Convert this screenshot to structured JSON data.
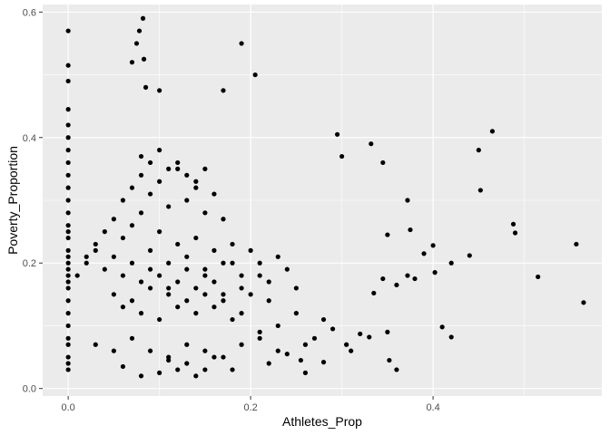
{
  "chart_data": {
    "type": "scatter",
    "title": "",
    "xlabel": "Athletes_Prop",
    "ylabel": "Poverty_Proportion",
    "xlim": [
      -0.028,
      0.585
    ],
    "ylim": [
      -0.012,
      0.612
    ],
    "x_ticks": [
      0.0,
      0.2,
      0.4
    ],
    "x_tick_labels": [
      "0.0",
      "0.2",
      "0.4"
    ],
    "y_ticks": [
      0.0,
      0.2,
      0.4,
      0.6
    ],
    "y_tick_labels": [
      "0.0",
      "0.2",
      "0.4",
      "0.6"
    ],
    "grid": true,
    "legend": "none",
    "colors": {
      "panel": "#ebebeb",
      "grid": "#ffffff",
      "point": "#000000"
    },
    "series": [
      {
        "x": [
          0.0,
          0.0,
          0.0,
          0.0,
          0.0,
          0.0,
          0.0,
          0.0,
          0.0,
          0.0,
          0.0,
          0.0,
          0.0,
          0.0,
          0.0,
          0.0,
          0.0,
          0.0,
          0.0,
          0.0,
          0.0,
          0.0,
          0.0,
          0.0,
          0.0,
          0.0,
          0.0,
          0.0,
          0.0,
          0.0,
          0.01,
          0.02,
          0.03,
          0.04,
          0.05,
          0.06,
          0.07,
          0.08,
          0.09,
          0.1,
          0.11,
          0.12,
          0.13,
          0.14,
          0.15,
          0.16,
          0.17,
          0.18,
          0.19,
          0.2,
          0.21,
          0.22,
          0.23,
          0.24,
          0.25,
          0.06,
          0.07,
          0.08,
          0.09,
          0.1,
          0.11,
          0.12,
          0.13,
          0.14,
          0.15,
          0.16,
          0.17,
          0.08,
          0.09,
          0.1,
          0.11,
          0.12,
          0.13,
          0.14,
          0.15,
          0.05,
          0.06,
          0.07,
          0.08,
          0.09,
          0.1,
          0.11,
          0.12,
          0.13,
          0.14,
          0.15,
          0.16,
          0.17,
          0.18,
          0.19,
          0.02,
          0.03,
          0.04,
          0.05,
          0.06,
          0.07,
          0.08,
          0.09,
          0.1,
          0.11,
          0.12,
          0.13,
          0.14,
          0.15,
          0.16,
          0.17,
          0.18,
          0.19,
          0.2,
          0.21,
          0.22,
          0.03,
          0.05,
          0.07,
          0.09,
          0.11,
          0.13,
          0.15,
          0.17,
          0.19,
          0.21,
          0.23,
          0.082,
          0.078,
          0.075,
          0.083,
          0.07,
          0.085,
          0.1,
          0.17,
          0.205,
          0.19,
          0.295,
          0.3,
          0.332,
          0.345,
          0.465,
          0.45,
          0.372,
          0.452,
          0.375,
          0.488,
          0.49,
          0.557,
          0.4,
          0.44,
          0.35,
          0.39,
          0.402,
          0.372,
          0.345,
          0.36,
          0.335,
          0.38,
          0.42,
          0.515,
          0.565,
          0.35,
          0.33,
          0.41,
          0.42,
          0.352,
          0.26,
          0.28,
          0.32,
          0.36,
          0.255,
          0.305,
          0.08,
          0.06,
          0.1,
          0.12,
          0.13,
          0.14,
          0.11,
          0.15,
          0.16,
          0.18,
          0.22,
          0.24,
          0.26,
          0.27,
          0.29,
          0.31,
          0.28,
          0.25,
          0.23,
          0.21
        ],
        "y": [
          0.57,
          0.515,
          0.49,
          0.445,
          0.42,
          0.4,
          0.38,
          0.36,
          0.34,
          0.32,
          0.3,
          0.28,
          0.26,
          0.25,
          0.24,
          0.22,
          0.21,
          0.2,
          0.19,
          0.18,
          0.17,
          0.16,
          0.14,
          0.12,
          0.1,
          0.08,
          0.07,
          0.05,
          0.04,
          0.03,
          0.18,
          0.21,
          0.23,
          0.25,
          0.27,
          0.24,
          0.26,
          0.28,
          0.22,
          0.25,
          0.2,
          0.23,
          0.21,
          0.24,
          0.19,
          0.22,
          0.2,
          0.23,
          0.18,
          0.22,
          0.2,
          0.17,
          0.21,
          0.19,
          0.16,
          0.3,
          0.32,
          0.34,
          0.31,
          0.33,
          0.29,
          0.35,
          0.3,
          0.32,
          0.28,
          0.31,
          0.27,
          0.37,
          0.36,
          0.38,
          0.35,
          0.36,
          0.34,
          0.33,
          0.35,
          0.15,
          0.13,
          0.14,
          0.12,
          0.16,
          0.11,
          0.15,
          0.13,
          0.14,
          0.12,
          0.15,
          0.13,
          0.14,
          0.11,
          0.12,
          0.2,
          0.22,
          0.19,
          0.21,
          0.18,
          0.2,
          0.17,
          0.19,
          0.18,
          0.16,
          0.17,
          0.19,
          0.16,
          0.18,
          0.17,
          0.15,
          0.2,
          0.16,
          0.15,
          0.18,
          0.14,
          0.07,
          0.06,
          0.08,
          0.06,
          0.05,
          0.07,
          0.06,
          0.05,
          0.07,
          0.08,
          0.06,
          0.59,
          0.57,
          0.55,
          0.525,
          0.52,
          0.48,
          0.475,
          0.475,
          0.5,
          0.55,
          0.405,
          0.37,
          0.39,
          0.36,
          0.41,
          0.38,
          0.3,
          0.316,
          0.253,
          0.262,
          0.248,
          0.23,
          0.228,
          0.212,
          0.245,
          0.215,
          0.185,
          0.18,
          0.175,
          0.165,
          0.152,
          0.175,
          0.2,
          0.178,
          0.137,
          0.09,
          0.082,
          0.098,
          0.082,
          0.045,
          0.025,
          0.042,
          0.087,
          0.03,
          0.045,
          0.07,
          0.02,
          0.035,
          0.025,
          0.03,
          0.04,
          0.02,
          0.045,
          0.03,
          0.05,
          0.03,
          0.04,
          0.055,
          0.07,
          0.08,
          0.095,
          0.06,
          0.11,
          0.12,
          0.1,
          0.09
        ]
      }
    ]
  }
}
